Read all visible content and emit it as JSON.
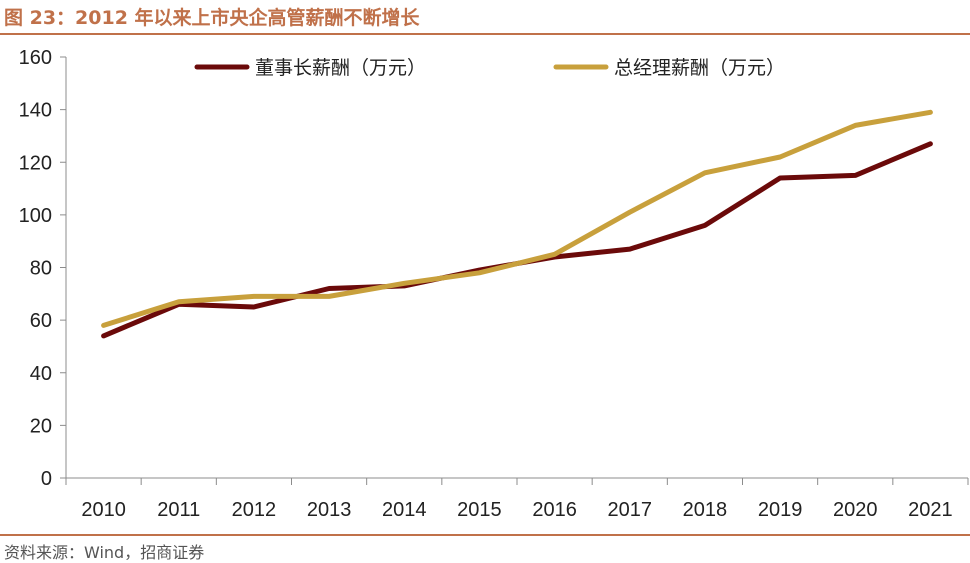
{
  "header": {
    "title": "图 23：2012 年以来上市央企高管薪酬不断增长",
    "source": "资料来源：Wind，招商证券"
  },
  "colors": {
    "accent": "#c0714a",
    "series_1": "#6b0a0a",
    "series_2": "#c8a03c"
  },
  "chart_data": {
    "type": "line",
    "title": "图 23：2012 年以来上市央企高管薪酬不断增长",
    "xlabel": "",
    "ylabel": "",
    "x": [
      "2010",
      "2011",
      "2012",
      "2013",
      "2014",
      "2015",
      "2016",
      "2017",
      "2018",
      "2019",
      "2020",
      "2021"
    ],
    "ylim": [
      0,
      160
    ],
    "yticks": [
      0,
      20,
      40,
      60,
      80,
      100,
      120,
      140,
      160
    ],
    "grid": false,
    "legend_position": "top",
    "series": [
      {
        "name": "董事长薪酬（万元）",
        "color": "#6b0a0a",
        "values": [
          54,
          66,
          65,
          72,
          73,
          79,
          84,
          87,
          96,
          114,
          115,
          127
        ]
      },
      {
        "name": "总经理薪酬（万元）",
        "color": "#c8a03c",
        "values": [
          58,
          67,
          69,
          69,
          74,
          78,
          85,
          101,
          116,
          122,
          134,
          139
        ]
      }
    ]
  }
}
